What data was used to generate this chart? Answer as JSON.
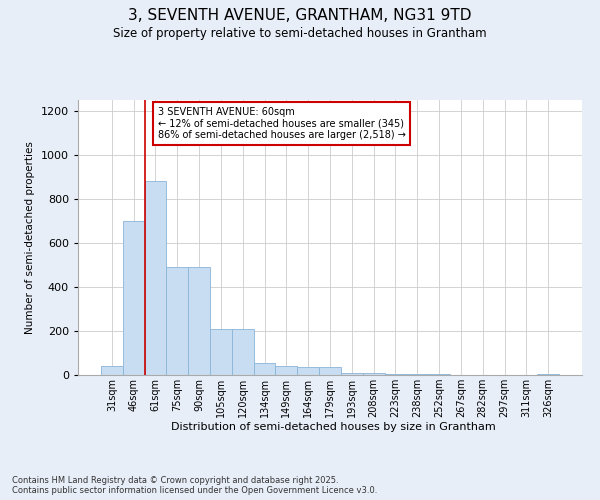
{
  "title1": "3, SEVENTH AVENUE, GRANTHAM, NG31 9TD",
  "title2": "Size of property relative to semi-detached houses in Grantham",
  "xlabel": "Distribution of semi-detached houses by size in Grantham",
  "ylabel": "Number of semi-detached properties",
  "categories": [
    "31sqm",
    "46sqm",
    "61sqm",
    "75sqm",
    "90sqm",
    "105sqm",
    "120sqm",
    "134sqm",
    "149sqm",
    "164sqm",
    "179sqm",
    "193sqm",
    "208sqm",
    "223sqm",
    "238sqm",
    "252sqm",
    "267sqm",
    "282sqm",
    "297sqm",
    "311sqm",
    "326sqm"
  ],
  "values": [
    40,
    700,
    880,
    490,
    490,
    210,
    210,
    55,
    40,
    35,
    35,
    10,
    10,
    5,
    5,
    3,
    2,
    2,
    1,
    1,
    5
  ],
  "bar_color": "#c9ddf2",
  "bar_edge_color": "#8ab4d8",
  "vline_x": 1.5,
  "vline_color": "#cc0000",
  "annotation_text": "3 SEVENTH AVENUE: 60sqm\n← 12% of semi-detached houses are smaller (345)\n86% of semi-detached houses are larger (2,518) →",
  "annotation_box_color": "#ffffff",
  "annotation_box_edge_color": "#cc0000",
  "ylim": [
    0,
    1250
  ],
  "yticks": [
    0,
    200,
    400,
    600,
    800,
    1000,
    1200
  ],
  "footer_text": "Contains HM Land Registry data © Crown copyright and database right 2025.\nContains public sector information licensed under the Open Government Licence v3.0.",
  "background_color": "#e8eef8",
  "plot_background_color": "#ffffff",
  "grid_color": "#cccccc"
}
